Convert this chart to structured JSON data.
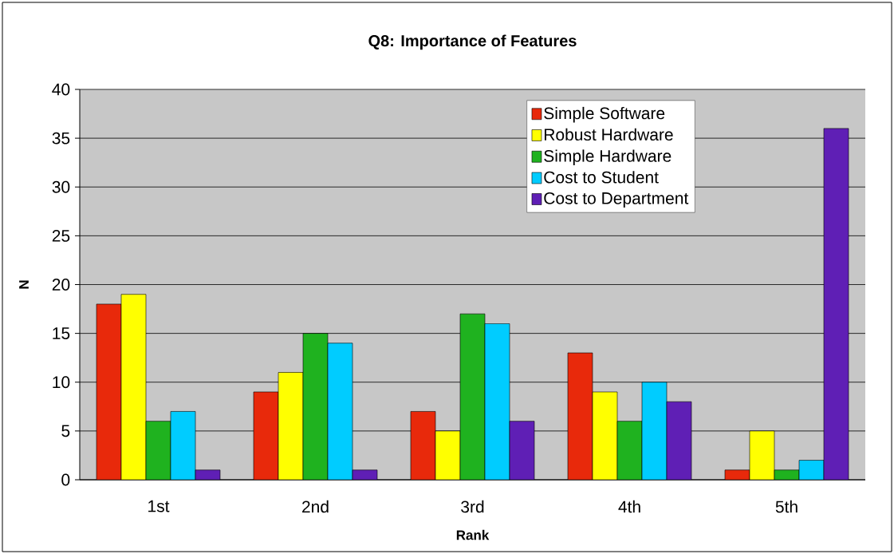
{
  "chart_data": {
    "type": "bar",
    "title": "Q8: Importance of Features",
    "xlabel": "Rank",
    "ylabel": "N",
    "categories": [
      "1st",
      "2nd",
      "3rd",
      "4th",
      "5th"
    ],
    "series": [
      {
        "name": "Simple Software",
        "color": "#e8290b",
        "values": [
          18,
          9,
          7,
          13,
          1
        ]
      },
      {
        "name": "Robust Hardware",
        "color": "#ffff00",
        "values": [
          19,
          11,
          5,
          9,
          5
        ]
      },
      {
        "name": "Simple Hardware",
        "color": "#1fb21f",
        "values": [
          6,
          15,
          17,
          6,
          1
        ]
      },
      {
        "name": "Cost to Student",
        "color": "#00ccff",
        "values": [
          7,
          14,
          16,
          10,
          2
        ]
      },
      {
        "name": "Cost to Department",
        "color": "#5f1fb5",
        "values": [
          1,
          1,
          6,
          8,
          36
        ]
      }
    ],
    "ylim": [
      0,
      40
    ],
    "yticks": [
      0,
      5,
      10,
      15,
      20,
      25,
      30,
      35,
      40
    ],
    "grid": "y",
    "legend": "top right"
  }
}
